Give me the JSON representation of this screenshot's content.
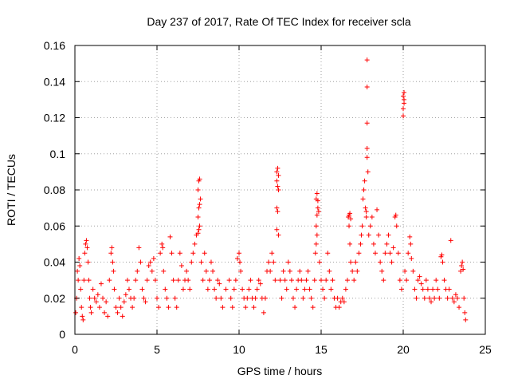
{
  "colors": {
    "series": "#ff0000",
    "grid": "#a0a0a0",
    "axis": "#000000"
  },
  "chart_data": {
    "type": "scatter",
    "marker": "plus",
    "title": "Day 237 of 2017, Rate Of TEC Index for receiver scla",
    "xlabel": "GPS time / hours",
    "ylabel": "ROTI / TECUs",
    "xlim": [
      0,
      25
    ],
    "ylim": [
      0,
      0.16
    ],
    "grid": true,
    "xticks": [
      0,
      5,
      10,
      15,
      20,
      25
    ],
    "xtick_labels": [
      "0",
      "5",
      "10",
      "15",
      "20",
      "25"
    ],
    "yticks": [
      0,
      0.02,
      0.04,
      0.06,
      0.08,
      0.1,
      0.12,
      0.14,
      0.16
    ],
    "ytick_labels": [
      "0",
      "0.02",
      "0.04",
      "0.06",
      "0.08",
      "0.1",
      "0.12",
      "0.14",
      "0.16"
    ],
    "series": [
      {
        "name": "ROTI",
        "points": [
          [
            0.05,
            0.012
          ],
          [
            0.1,
            0.02
          ],
          [
            0.15,
            0.035
          ],
          [
            0.2,
            0.03
          ],
          [
            0.25,
            0.042
          ],
          [
            0.3,
            0.038
          ],
          [
            0.35,
            0.025
          ],
          [
            0.4,
            0.015
          ],
          [
            0.45,
            0.01
          ],
          [
            0.5,
            0.008
          ],
          [
            0.55,
            0.03
          ],
          [
            0.6,
            0.045
          ],
          [
            0.65,
            0.05
          ],
          [
            0.7,
            0.052
          ],
          [
            0.75,
            0.048
          ],
          [
            0.8,
            0.04
          ],
          [
            0.85,
            0.03
          ],
          [
            0.9,
            0.02
          ],
          [
            0.95,
            0.015
          ],
          [
            1.0,
            0.012
          ],
          [
            1.1,
            0.025
          ],
          [
            1.2,
            0.02
          ],
          [
            1.3,
            0.018
          ],
          [
            1.4,
            0.022
          ],
          [
            1.5,
            0.015
          ],
          [
            1.6,
            0.028
          ],
          [
            1.7,
            0.02
          ],
          [
            1.8,
            0.012
          ],
          [
            1.9,
            0.018
          ],
          [
            2.0,
            0.01
          ],
          [
            2.1,
            0.03
          ],
          [
            2.2,
            0.045
          ],
          [
            2.25,
            0.048
          ],
          [
            2.3,
            0.04
          ],
          [
            2.35,
            0.035
          ],
          [
            2.4,
            0.025
          ],
          [
            2.5,
            0.015
          ],
          [
            2.6,
            0.012
          ],
          [
            2.7,
            0.02
          ],
          [
            2.8,
            0.015
          ],
          [
            2.9,
            0.01
          ],
          [
            3.0,
            0.018
          ],
          [
            3.1,
            0.022
          ],
          [
            3.2,
            0.03
          ],
          [
            3.3,
            0.025
          ],
          [
            3.4,
            0.02
          ],
          [
            3.5,
            0.015
          ],
          [
            3.6,
            0.02
          ],
          [
            3.7,
            0.03
          ],
          [
            3.8,
            0.035
          ],
          [
            3.9,
            0.048
          ],
          [
            4.0,
            0.04
          ],
          [
            4.1,
            0.025
          ],
          [
            4.2,
            0.02
          ],
          [
            4.3,
            0.018
          ],
          [
            4.4,
            0.03
          ],
          [
            4.5,
            0.038
          ],
          [
            4.6,
            0.04
          ],
          [
            4.7,
            0.035
          ],
          [
            4.8,
            0.042
          ],
          [
            4.9,
            0.03
          ],
          [
            5.0,
            0.02
          ],
          [
            5.1,
            0.015
          ],
          [
            5.2,
            0.045
          ],
          [
            5.3,
            0.05
          ],
          [
            5.35,
            0.048
          ],
          [
            5.4,
            0.035
          ],
          [
            5.5,
            0.025
          ],
          [
            5.6,
            0.02
          ],
          [
            5.7,
            0.015
          ],
          [
            5.8,
            0.054
          ],
          [
            5.9,
            0.045
          ],
          [
            6.0,
            0.03
          ],
          [
            6.1,
            0.02
          ],
          [
            6.2,
            0.015
          ],
          [
            6.3,
            0.03
          ],
          [
            6.4,
            0.045
          ],
          [
            6.5,
            0.038
          ],
          [
            6.6,
            0.025
          ],
          [
            6.7,
            0.03
          ],
          [
            6.8,
            0.035
          ],
          [
            6.9,
            0.03
          ],
          [
            7.0,
            0.025
          ],
          [
            7.1,
            0.04
          ],
          [
            7.2,
            0.045
          ],
          [
            7.3,
            0.05
          ],
          [
            7.4,
            0.055
          ],
          [
            7.5,
            0.056
          ],
          [
            7.55,
            0.058
          ],
          [
            7.6,
            0.06
          ],
          [
            7.5,
            0.065
          ],
          [
            7.55,
            0.07
          ],
          [
            7.6,
            0.072
          ],
          [
            7.65,
            0.075
          ],
          [
            7.5,
            0.08
          ],
          [
            7.55,
            0.085
          ],
          [
            7.6,
            0.086
          ],
          [
            7.7,
            0.04
          ],
          [
            7.8,
            0.03
          ],
          [
            7.9,
            0.045
          ],
          [
            8.0,
            0.035
          ],
          [
            8.1,
            0.025
          ],
          [
            8.2,
            0.03
          ],
          [
            8.3,
            0.04
          ],
          [
            8.4,
            0.035
          ],
          [
            8.5,
            0.025
          ],
          [
            8.6,
            0.02
          ],
          [
            8.7,
            0.03
          ],
          [
            8.8,
            0.028
          ],
          [
            8.9,
            0.02
          ],
          [
            9.0,
            0.015
          ],
          [
            9.2,
            0.025
          ],
          [
            9.4,
            0.03
          ],
          [
            9.5,
            0.02
          ],
          [
            9.6,
            0.015
          ],
          [
            9.7,
            0.025
          ],
          [
            9.8,
            0.03
          ],
          [
            9.9,
            0.042
          ],
          [
            10.0,
            0.045
          ],
          [
            10.05,
            0.04
          ],
          [
            10.1,
            0.035
          ],
          [
            10.2,
            0.025
          ],
          [
            10.3,
            0.02
          ],
          [
            10.4,
            0.015
          ],
          [
            10.5,
            0.02
          ],
          [
            10.6,
            0.025
          ],
          [
            10.7,
            0.03
          ],
          [
            10.8,
            0.02
          ],
          [
            10.9,
            0.015
          ],
          [
            11.0,
            0.02
          ],
          [
            11.1,
            0.025
          ],
          [
            11.2,
            0.03
          ],
          [
            11.3,
            0.028
          ],
          [
            11.4,
            0.02
          ],
          [
            11.5,
            0.012
          ],
          [
            11.6,
            0.02
          ],
          [
            11.7,
            0.035
          ],
          [
            11.8,
            0.04
          ],
          [
            11.9,
            0.035
          ],
          [
            12.0,
            0.045
          ],
          [
            12.1,
            0.04
          ],
          [
            12.2,
            0.03
          ],
          [
            12.3,
            0.09
          ],
          [
            12.35,
            0.092
          ],
          [
            12.4,
            0.088
          ],
          [
            12.3,
            0.085
          ],
          [
            12.35,
            0.082
          ],
          [
            12.4,
            0.08
          ],
          [
            12.3,
            0.07
          ],
          [
            12.35,
            0.068
          ],
          [
            12.3,
            0.058
          ],
          [
            12.4,
            0.055
          ],
          [
            12.5,
            0.03
          ],
          [
            12.6,
            0.02
          ],
          [
            12.7,
            0.035
          ],
          [
            12.8,
            0.03
          ],
          [
            12.9,
            0.025
          ],
          [
            13.0,
            0.04
          ],
          [
            13.1,
            0.035
          ],
          [
            13.2,
            0.03
          ],
          [
            13.3,
            0.02
          ],
          [
            13.4,
            0.015
          ],
          [
            13.5,
            0.025
          ],
          [
            13.6,
            0.03
          ],
          [
            13.7,
            0.035
          ],
          [
            13.8,
            0.03
          ],
          [
            13.9,
            0.02
          ],
          [
            14.0,
            0.025
          ],
          [
            14.1,
            0.03
          ],
          [
            14.2,
            0.035
          ],
          [
            14.3,
            0.025
          ],
          [
            14.4,
            0.02
          ],
          [
            14.5,
            0.015
          ],
          [
            14.6,
            0.03
          ],
          [
            14.65,
            0.045
          ],
          [
            14.7,
            0.05
          ],
          [
            14.75,
            0.055
          ],
          [
            14.7,
            0.06
          ],
          [
            14.75,
            0.066
          ],
          [
            14.8,
            0.07
          ],
          [
            14.7,
            0.075
          ],
          [
            14.75,
            0.078
          ],
          [
            14.8,
            0.074
          ],
          [
            14.85,
            0.068
          ],
          [
            14.9,
            0.04
          ],
          [
            15.0,
            0.03
          ],
          [
            15.1,
            0.025
          ],
          [
            15.2,
            0.02
          ],
          [
            15.3,
            0.03
          ],
          [
            15.4,
            0.045
          ],
          [
            15.5,
            0.035
          ],
          [
            15.6,
            0.025
          ],
          [
            15.7,
            0.03
          ],
          [
            15.8,
            0.02
          ],
          [
            15.9,
            0.015
          ],
          [
            16.0,
            0.02
          ],
          [
            16.1,
            0.015
          ],
          [
            16.2,
            0.018
          ],
          [
            16.3,
            0.02
          ],
          [
            16.4,
            0.018
          ],
          [
            16.5,
            0.025
          ],
          [
            16.6,
            0.03
          ],
          [
            16.65,
            0.065
          ],
          [
            16.7,
            0.066
          ],
          [
            16.75,
            0.067
          ],
          [
            16.8,
            0.064
          ],
          [
            16.7,
            0.06
          ],
          [
            16.75,
            0.05
          ],
          [
            16.8,
            0.04
          ],
          [
            16.9,
            0.035
          ],
          [
            17.0,
            0.03
          ],
          [
            17.1,
            0.04
          ],
          [
            17.2,
            0.035
          ],
          [
            17.3,
            0.045
          ],
          [
            17.4,
            0.05
          ],
          [
            17.45,
            0.055
          ],
          [
            17.5,
            0.06
          ],
          [
            17.55,
            0.075
          ],
          [
            17.6,
            0.08
          ],
          [
            17.65,
            0.085
          ],
          [
            17.7,
            0.07
          ],
          [
            17.75,
            0.065
          ],
          [
            17.8,
            0.152
          ],
          [
            17.8,
            0.137
          ],
          [
            17.8,
            0.117
          ],
          [
            17.8,
            0.103
          ],
          [
            17.8,
            0.098
          ],
          [
            17.85,
            0.09
          ],
          [
            17.75,
            0.068
          ],
          [
            17.9,
            0.055
          ],
          [
            18.0,
            0.06
          ],
          [
            18.1,
            0.065
          ],
          [
            18.2,
            0.05
          ],
          [
            18.3,
            0.045
          ],
          [
            18.4,
            0.069
          ],
          [
            18.5,
            0.055
          ],
          [
            18.6,
            0.04
          ],
          [
            18.7,
            0.035
          ],
          [
            18.8,
            0.03
          ],
          [
            18.9,
            0.045
          ],
          [
            19.0,
            0.05
          ],
          [
            19.1,
            0.055
          ],
          [
            19.2,
            0.045
          ],
          [
            19.3,
            0.04
          ],
          [
            19.4,
            0.048
          ],
          [
            19.5,
            0.065
          ],
          [
            19.55,
            0.066
          ],
          [
            19.6,
            0.06
          ],
          [
            19.7,
            0.045
          ],
          [
            19.8,
            0.03
          ],
          [
            19.9,
            0.025
          ],
          [
            20.0,
            0.121
          ],
          [
            20.0,
            0.125
          ],
          [
            20.05,
            0.13
          ],
          [
            20.05,
            0.134
          ],
          [
            20.0,
            0.132
          ],
          [
            20.05,
            0.128
          ],
          [
            20.1,
            0.035
          ],
          [
            20.2,
            0.03
          ],
          [
            20.3,
            0.045
          ],
          [
            20.4,
            0.054
          ],
          [
            20.45,
            0.05
          ],
          [
            20.5,
            0.042
          ],
          [
            20.6,
            0.035
          ],
          [
            20.7,
            0.025
          ],
          [
            20.8,
            0.02
          ],
          [
            20.9,
            0.03
          ],
          [
            21.0,
            0.032
          ],
          [
            21.1,
            0.028
          ],
          [
            21.2,
            0.025
          ],
          [
            21.3,
            0.02
          ],
          [
            21.4,
            0.03
          ],
          [
            21.5,
            0.025
          ],
          [
            21.6,
            0.02
          ],
          [
            21.7,
            0.018
          ],
          [
            21.8,
            0.025
          ],
          [
            21.9,
            0.02
          ],
          [
            22.0,
            0.03
          ],
          [
            22.1,
            0.025
          ],
          [
            22.2,
            0.02
          ],
          [
            22.3,
            0.043
          ],
          [
            22.35,
            0.044
          ],
          [
            22.4,
            0.04
          ],
          [
            22.5,
            0.03
          ],
          [
            22.6,
            0.025
          ],
          [
            22.7,
            0.02
          ],
          [
            22.8,
            0.025
          ],
          [
            22.9,
            0.052
          ],
          [
            23.0,
            0.02
          ],
          [
            23.1,
            0.018
          ],
          [
            23.2,
            0.022
          ],
          [
            23.3,
            0.02
          ],
          [
            23.4,
            0.015
          ],
          [
            23.5,
            0.035
          ],
          [
            23.55,
            0.038
          ],
          [
            23.6,
            0.04
          ],
          [
            23.65,
            0.036
          ],
          [
            23.7,
            0.02
          ],
          [
            23.75,
            0.012
          ],
          [
            23.8,
            0.008
          ]
        ]
      }
    ]
  }
}
